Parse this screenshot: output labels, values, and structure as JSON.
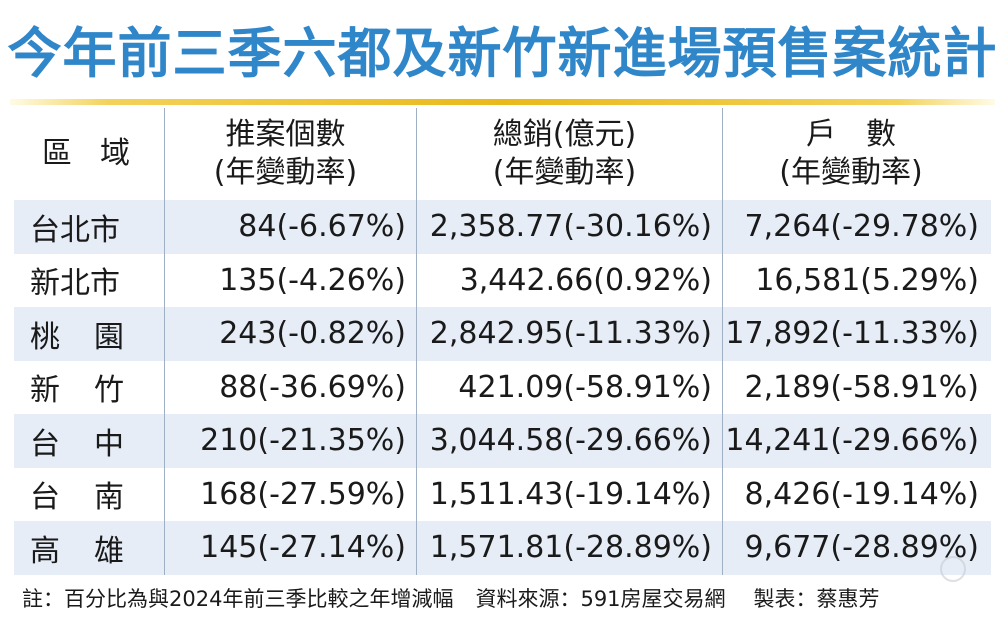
{
  "title": "今年前三季六都及新竹新進場預售案統計",
  "table": {
    "headers": [
      "區域",
      "推案個數\n(年變動率)",
      "總銷(億元)\n(年變動率)",
      "戶　數\n(年變動率)"
    ],
    "rows": [
      {
        "region": "台北市",
        "cases": "84(-6.67%)",
        "sales": "2,358.77(-30.16%)",
        "units": "7,264(-29.78%)"
      },
      {
        "region": "新北市",
        "cases": "135(-4.26%)",
        "sales": "3,442.66(0.92%)",
        "units": "16,581(5.29%)"
      },
      {
        "region": "桃園",
        "cases": "243(-0.82%)",
        "sales": "2,842.95(-11.33%)",
        "units": "17,892(-11.33%)"
      },
      {
        "region": "新竹",
        "cases": "88(-36.69%)",
        "sales": "421.09(-58.91%)",
        "units": "2,189(-58.91%)"
      },
      {
        "region": "台中",
        "cases": "210(-21.35%)",
        "sales": "3,044.58(-29.66%)",
        "units": "14,241(-29.66%)"
      },
      {
        "region": "台南",
        "cases": "168(-27.59%)",
        "sales": "1,511.43(-19.14%)",
        "units": "8,426(-19.14%)"
      },
      {
        "region": "高雄",
        "cases": "145(-27.14%)",
        "sales": "1,571.81(-28.89%)",
        "units": "9,677(-28.89%)"
      }
    ]
  },
  "footer": {
    "note": "註：百分比為與2024年前三季比較之年增減幅",
    "source": "資料來源：591房屋交易網",
    "credit": "製表：蔡惠芳"
  },
  "colors": {
    "title": "#2f86c9",
    "band": "#e6edf7",
    "rule": "#e9b91b"
  }
}
